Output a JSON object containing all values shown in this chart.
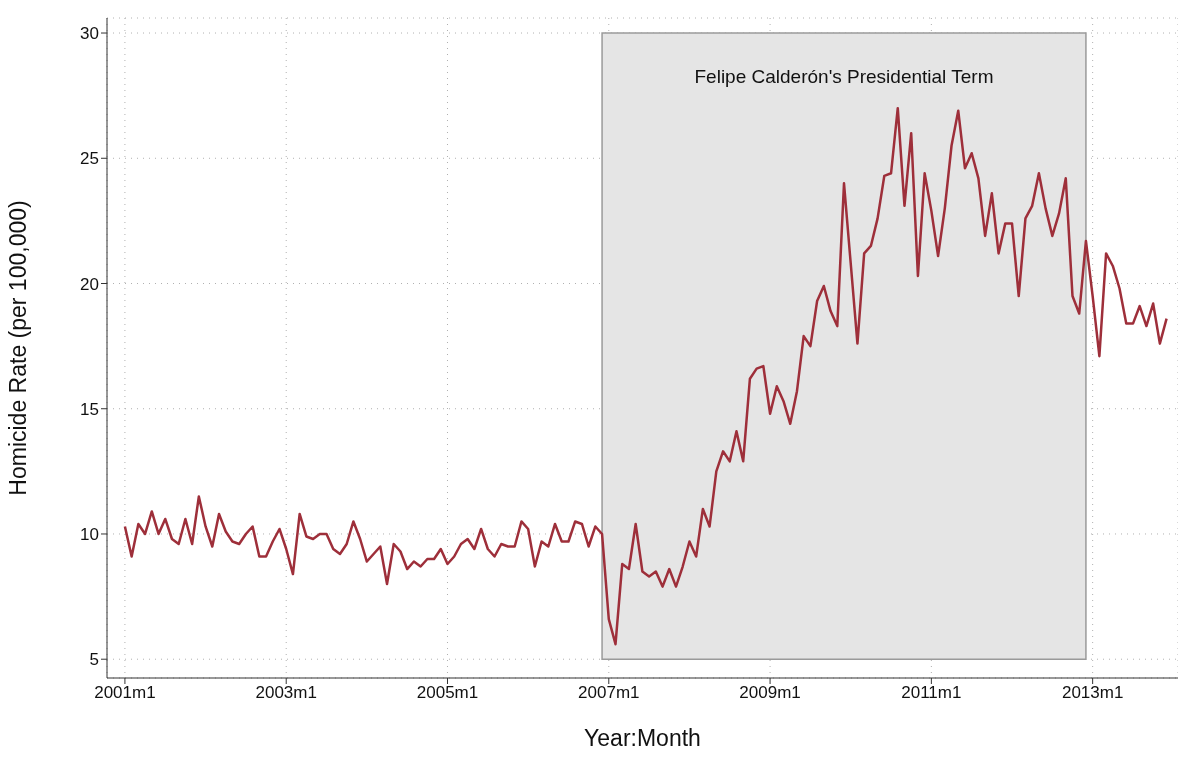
{
  "chart_data": {
    "type": "line",
    "xlabel": "Year:Month",
    "ylabel": "Homicide Rate (per 100,000)",
    "x": [
      "2001-01",
      "2001-02",
      "2001-03",
      "2001-04",
      "2001-05",
      "2001-06",
      "2001-07",
      "2001-08",
      "2001-09",
      "2001-10",
      "2001-11",
      "2001-12",
      "2002-01",
      "2002-02",
      "2002-03",
      "2002-04",
      "2002-05",
      "2002-06",
      "2002-07",
      "2002-08",
      "2002-09",
      "2002-10",
      "2002-11",
      "2002-12",
      "2003-01",
      "2003-02",
      "2003-03",
      "2003-04",
      "2003-05",
      "2003-06",
      "2003-07",
      "2003-08",
      "2003-09",
      "2003-10",
      "2003-11",
      "2003-12",
      "2004-01",
      "2004-02",
      "2004-03",
      "2004-04",
      "2004-05",
      "2004-06",
      "2004-07",
      "2004-08",
      "2004-09",
      "2004-10",
      "2004-11",
      "2004-12",
      "2005-01",
      "2005-02",
      "2005-03",
      "2005-04",
      "2005-05",
      "2005-06",
      "2005-07",
      "2005-08",
      "2005-09",
      "2005-10",
      "2005-11",
      "2005-12",
      "2006-01",
      "2006-02",
      "2006-03",
      "2006-04",
      "2006-05",
      "2006-06",
      "2006-07",
      "2006-08",
      "2006-09",
      "2006-10",
      "2006-11",
      "2006-12",
      "2007-01",
      "2007-02",
      "2007-03",
      "2007-04",
      "2007-05",
      "2007-06",
      "2007-07",
      "2007-08",
      "2007-09",
      "2007-10",
      "2007-11",
      "2007-12",
      "2008-01",
      "2008-02",
      "2008-03",
      "2008-04",
      "2008-05",
      "2008-06",
      "2008-07",
      "2008-08",
      "2008-09",
      "2008-10",
      "2008-11",
      "2008-12",
      "2009-01",
      "2009-02",
      "2009-03",
      "2009-04",
      "2009-05",
      "2009-06",
      "2009-07",
      "2009-08",
      "2009-09",
      "2009-10",
      "2009-11",
      "2009-12",
      "2010-01",
      "2010-02",
      "2010-03",
      "2010-04",
      "2010-05",
      "2010-06",
      "2010-07",
      "2010-08",
      "2010-09",
      "2010-10",
      "2010-11",
      "2010-12",
      "2011-01",
      "2011-02",
      "2011-03",
      "2011-04",
      "2011-05",
      "2011-06",
      "2011-07",
      "2011-08",
      "2011-09",
      "2011-10",
      "2011-11",
      "2011-12",
      "2012-01",
      "2012-02",
      "2012-03",
      "2012-04",
      "2012-05",
      "2012-06",
      "2012-07",
      "2012-08",
      "2012-09",
      "2012-10",
      "2012-11",
      "2012-12",
      "2013-01",
      "2013-02",
      "2013-03",
      "2013-04",
      "2013-05",
      "2013-06",
      "2013-07",
      "2013-08",
      "2013-09",
      "2013-10",
      "2013-11",
      "2013-12"
    ],
    "series": [
      {
        "color": "#9e2f3a",
        "values": [
          10.3,
          9.1,
          10.4,
          10.0,
          10.9,
          10.0,
          10.6,
          9.8,
          9.6,
          10.6,
          9.6,
          11.5,
          10.3,
          9.5,
          10.8,
          10.1,
          9.7,
          9.6,
          10.0,
          10.3,
          9.1,
          9.1,
          9.7,
          10.2,
          9.4,
          8.4,
          10.8,
          9.9,
          9.8,
          10.0,
          10.0,
          9.4,
          9.2,
          9.6,
          10.5,
          9.8,
          8.9,
          9.2,
          9.5,
          8.0,
          9.6,
          9.3,
          8.6,
          8.9,
          8.7,
          9.0,
          9.0,
          9.4,
          8.8,
          9.1,
          9.6,
          9.8,
          9.4,
          10.2,
          9.4,
          9.1,
          9.6,
          9.5,
          9.5,
          10.5,
          10.2,
          8.7,
          9.7,
          9.5,
          10.4,
          9.7,
          9.7,
          10.5,
          10.4,
          9.5,
          10.3,
          10.0,
          6.6,
          5.6,
          8.8,
          8.6,
          10.4,
          8.5,
          8.3,
          8.5,
          7.9,
          8.6,
          7.9,
          8.7,
          9.7,
          9.1,
          11.0,
          10.3,
          12.5,
          13.3,
          12.9,
          14.1,
          12.9,
          16.2,
          16.6,
          16.7,
          14.8,
          15.9,
          15.3,
          14.4,
          15.7,
          17.9,
          17.5,
          19.3,
          19.9,
          18.9,
          18.3,
          24.0,
          20.8,
          17.6,
          21.2,
          21.5,
          22.6,
          24.3,
          24.4,
          27.0,
          23.1,
          26.0,
          20.3,
          24.4,
          22.9,
          21.1,
          23.0,
          25.5,
          26.9,
          24.6,
          25.2,
          24.2,
          21.9,
          23.6,
          21.2,
          22.4,
          22.4,
          19.5,
          22.6,
          23.1,
          24.4,
          23.0,
          21.9,
          22.8,
          24.2,
          19.5,
          18.8,
          21.7,
          19.5,
          17.1,
          21.2,
          20.7,
          19.8,
          18.4,
          18.4,
          19.1,
          18.3,
          19.2,
          17.6,
          18.6
        ]
      }
    ],
    "xlim": [
      "2000-10-11",
      "2014-01-22"
    ],
    "xticks": [
      {
        "value": "2001-01",
        "label": "2001m1"
      },
      {
        "value": "2003-01",
        "label": "2003m1"
      },
      {
        "value": "2005-01",
        "label": "2005m1"
      },
      {
        "value": "2007-01",
        "label": "2007m1"
      },
      {
        "value": "2009-01",
        "label": "2009m1"
      },
      {
        "value": "2011-01",
        "label": "2011m1"
      },
      {
        "value": "2013-01",
        "label": "2013m1"
      }
    ],
    "ylim": [
      4.25,
      30.6
    ],
    "yticks": [
      5,
      10,
      15,
      20,
      25,
      30
    ],
    "bands": [
      {
        "axis": "x",
        "from": "2006-12",
        "to": "2012-12",
        "label": "Felipe Calderón's Presidential Term",
        "color": "#e5e5e5"
      }
    ],
    "grid": true,
    "legend": false,
    "marker": "none",
    "line_style": "solid"
  }
}
